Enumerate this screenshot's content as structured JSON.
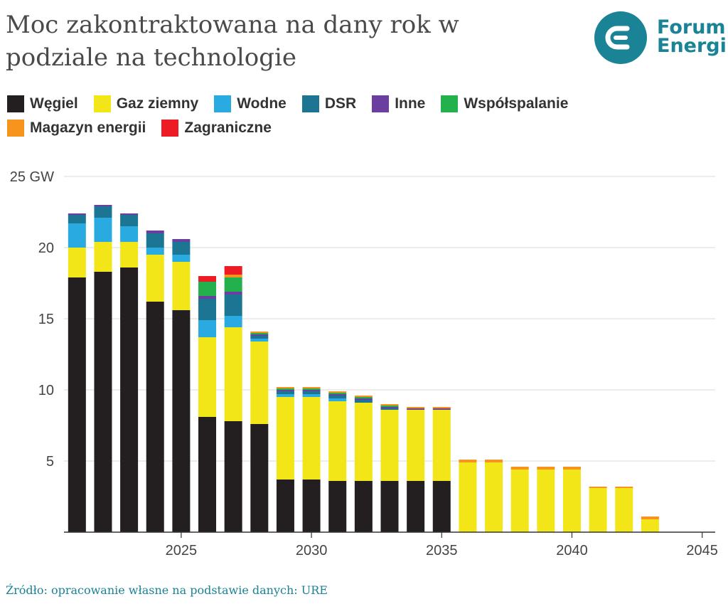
{
  "header": {
    "title": "Moc zakontraktowana na dany rok w podziale na technologie",
    "logo_line1": "Forum",
    "logo_line2": "Energii"
  },
  "source": "Źródło: opracowanie własne na podstawie danych: URE",
  "colors": {
    "accent": "#1a8396"
  },
  "chart_data": {
    "type": "bar",
    "stacked": true,
    "title": "Moc zakontraktowana na dany rok w podziale na technologie",
    "xlabel": "",
    "ylabel": "",
    "ylim": [
      0,
      25
    ],
    "yticks": [
      5,
      10,
      15,
      20,
      25
    ],
    "ytick_labels": [
      "5",
      "10",
      "15",
      "20",
      "25 GW"
    ],
    "xticks": [
      2025,
      2030,
      2035,
      2040,
      2045
    ],
    "xlim": [
      2020.5,
      2045.5
    ],
    "grid": true,
    "legend_position": "top",
    "categories": [
      2021,
      2022,
      2023,
      2024,
      2025,
      2026,
      2027,
      2028,
      2029,
      2030,
      2031,
      2032,
      2033,
      2034,
      2035,
      2036,
      2037,
      2038,
      2039,
      2040,
      2041,
      2042,
      2043
    ],
    "series": [
      {
        "name": "Węgiel",
        "color": "#231f20",
        "values": [
          17.9,
          18.3,
          18.6,
          16.2,
          15.6,
          8.1,
          7.8,
          7.6,
          3.7,
          3.7,
          3.6,
          3.6,
          3.6,
          3.6,
          3.6,
          0,
          0,
          0,
          0,
          0,
          0,
          0,
          0
        ]
      },
      {
        "name": "Gaz ziemny",
        "color": "#f2e618",
        "values": [
          2.1,
          2.1,
          1.8,
          3.3,
          3.4,
          5.6,
          6.6,
          5.8,
          5.8,
          5.8,
          5.6,
          5.5,
          5.0,
          5.0,
          5.0,
          4.9,
          4.9,
          4.4,
          4.4,
          4.4,
          3.1,
          3.1,
          0.9
        ]
      },
      {
        "name": "Wodne",
        "color": "#29abe2",
        "values": [
          1.7,
          1.7,
          1.1,
          0.5,
          0.5,
          1.2,
          0.8,
          0.2,
          0.2,
          0.2,
          0.2,
          0,
          0,
          0,
          0,
          0,
          0,
          0,
          0,
          0,
          0,
          0,
          0
        ]
      },
      {
        "name": "DSR",
        "color": "#1b7593",
        "values": [
          0.6,
          0.8,
          0.8,
          1.0,
          0.9,
          1.5,
          1.5,
          0.2,
          0.2,
          0.2,
          0.2,
          0.2,
          0.1,
          0,
          0,
          0,
          0,
          0,
          0,
          0,
          0,
          0,
          0
        ]
      },
      {
        "name": "Inne",
        "color": "#6b3fa0",
        "values": [
          0.1,
          0.1,
          0.1,
          0.2,
          0.2,
          0.2,
          0.2,
          0.1,
          0.1,
          0.1,
          0.1,
          0.1,
          0.1,
          0.1,
          0.1,
          0,
          0,
          0,
          0,
          0,
          0,
          0,
          0
        ]
      },
      {
        "name": "Współspalanie",
        "color": "#22b14c",
        "values": [
          0,
          0,
          0,
          0,
          0,
          1.0,
          1.0,
          0.1,
          0.1,
          0.1,
          0.1,
          0.1,
          0.1,
          0,
          0,
          0,
          0,
          0,
          0,
          0,
          0,
          0,
          0
        ]
      },
      {
        "name": "Magazyn energii",
        "color": "#f7941d",
        "values": [
          0,
          0,
          0,
          0,
          0,
          0,
          0.2,
          0.1,
          0.1,
          0.1,
          0.1,
          0.1,
          0.1,
          0.1,
          0.1,
          0.2,
          0.2,
          0.2,
          0.2,
          0.2,
          0.1,
          0.1,
          0.2
        ]
      },
      {
        "name": "Zagraniczne",
        "color": "#ed1c24",
        "values": [
          0,
          0,
          0,
          0,
          0,
          0.4,
          0.6,
          0,
          0,
          0,
          0,
          0,
          0,
          0,
          0,
          0,
          0,
          0,
          0,
          0,
          0,
          0,
          0
        ]
      }
    ]
  }
}
